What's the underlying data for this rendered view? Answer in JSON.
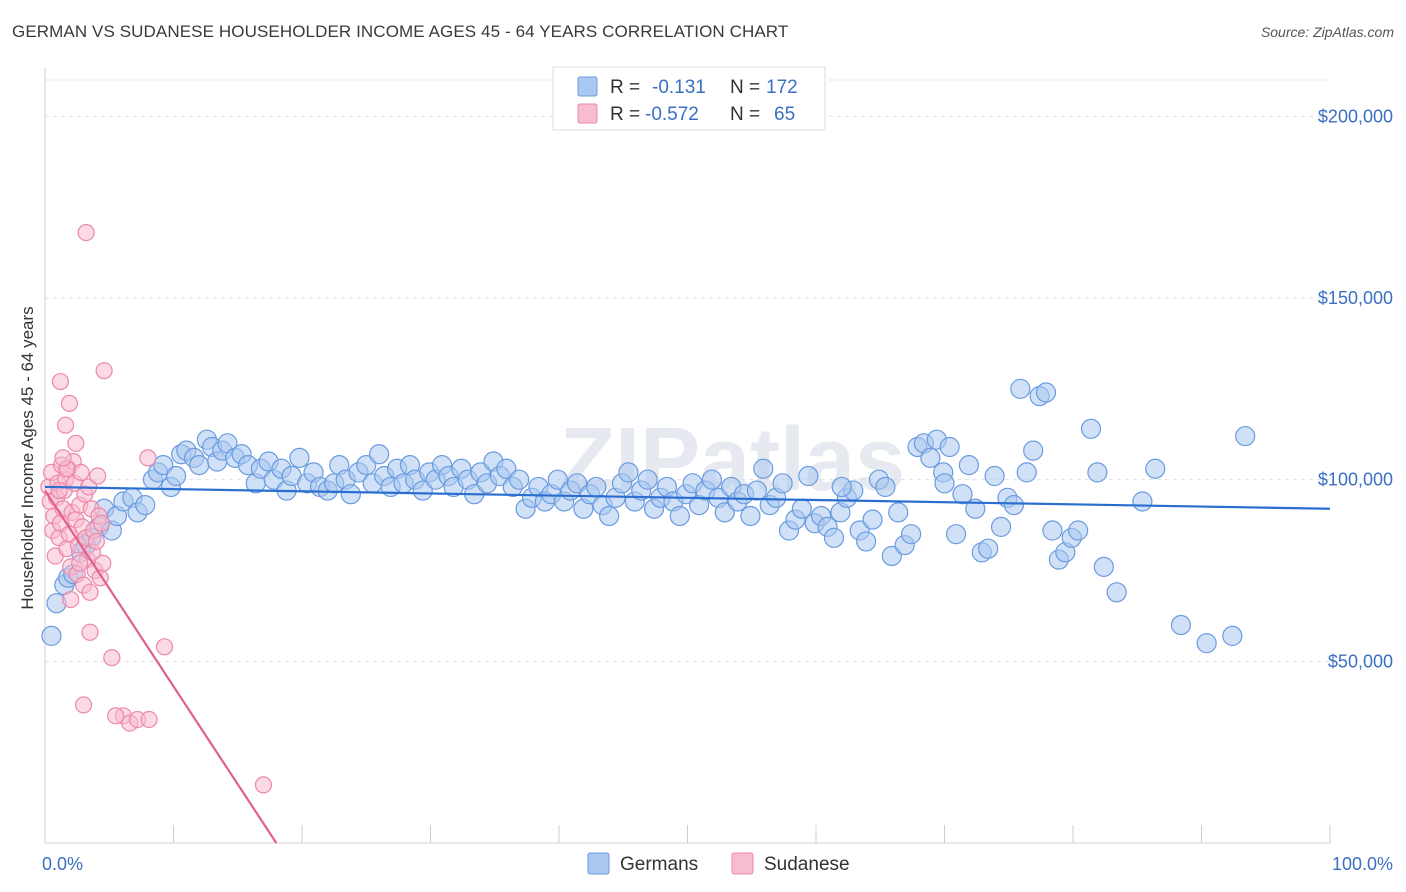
{
  "title": "GERMAN VS SUDANESE HOUSEHOLDER INCOME AGES 45 - 64 YEARS CORRELATION CHART",
  "source": "Source: ZipAtlas.com",
  "watermark": "ZIPatlas",
  "legend_top": [
    {
      "r_label": "R =",
      "r_value": "-0.131",
      "n_label": "N =",
      "n_value": "172",
      "color": "#a9c8f0",
      "stroke": "#6a9be0"
    },
    {
      "r_label": "R =",
      "r_value": "-0.572",
      "n_label": "N =",
      "n_value": "65",
      "color": "#f8bcd0",
      "stroke": "#ec88a8"
    }
  ],
  "chart_data": {
    "type": "scatter",
    "ylabel": "Householder Income Ages 45 - 64 years",
    "xlim": [
      0,
      100
    ],
    "ylim": [
      0,
      210000
    ],
    "x_tick_labels": [
      "0.0%",
      "100.0%"
    ],
    "y_ticks": [
      50000,
      100000,
      150000,
      200000
    ],
    "y_tick_labels": [
      "$50,000",
      "$100,000",
      "$150,000",
      "$200,000"
    ],
    "grid": "horizontal dashed",
    "legend_placement": "top-center and bottom-center",
    "series": [
      {
        "name": "Germans",
        "color": "#a9c8f0",
        "stroke": "#6a9be0",
        "line_color": "#2a6fd0",
        "trend": {
          "x0": 0,
          "y0": 98000,
          "x1": 100,
          "y1": 92000
        },
        "points": [
          [
            0.5,
            57000
          ],
          [
            0.9,
            66000
          ],
          [
            1.5,
            71000
          ],
          [
            1.8,
            73000
          ],
          [
            2.2,
            74000
          ],
          [
            2.8,
            80000
          ],
          [
            3.2,
            82000
          ],
          [
            3.6,
            84000
          ],
          [
            4.2,
            87000
          ],
          [
            4.6,
            92000
          ],
          [
            5.2,
            86000
          ],
          [
            5.6,
            90000
          ],
          [
            6.1,
            94000
          ],
          [
            6.8,
            95000
          ],
          [
            7.2,
            91000
          ],
          [
            7.8,
            93000
          ],
          [
            8.4,
            100000
          ],
          [
            8.8,
            102000
          ],
          [
            9.2,
            104000
          ],
          [
            9.8,
            98000
          ],
          [
            10.2,
            101000
          ],
          [
            10.6,
            107000
          ],
          [
            11.0,
            108000
          ],
          [
            11.6,
            106000
          ],
          [
            12.0,
            104000
          ],
          [
            12.6,
            111000
          ],
          [
            13.0,
            109000
          ],
          [
            13.4,
            105000
          ],
          [
            13.8,
            108000
          ],
          [
            14.2,
            110000
          ],
          [
            14.8,
            106000
          ],
          [
            15.3,
            107000
          ],
          [
            15.8,
            104000
          ],
          [
            16.4,
            99000
          ],
          [
            16.8,
            103000
          ],
          [
            17.4,
            105000
          ],
          [
            17.8,
            100000
          ],
          [
            18.4,
            103000
          ],
          [
            18.8,
            97000
          ],
          [
            19.2,
            101000
          ],
          [
            19.8,
            106000
          ],
          [
            20.4,
            99000
          ],
          [
            20.9,
            102000
          ],
          [
            21.4,
            98000
          ],
          [
            22.0,
            97000
          ],
          [
            22.5,
            99000
          ],
          [
            22.9,
            104000
          ],
          [
            23.4,
            100000
          ],
          [
            23.8,
            96000
          ],
          [
            24.4,
            102000
          ],
          [
            25.0,
            104000
          ],
          [
            25.5,
            99000
          ],
          [
            26.0,
            107000
          ],
          [
            26.4,
            101000
          ],
          [
            26.9,
            98000
          ],
          [
            27.4,
            103000
          ],
          [
            27.9,
            99000
          ],
          [
            28.4,
            104000
          ],
          [
            28.8,
            100000
          ],
          [
            29.4,
            97000
          ],
          [
            29.9,
            102000
          ],
          [
            30.4,
            100000
          ],
          [
            30.9,
            104000
          ],
          [
            31.4,
            101000
          ],
          [
            31.8,
            98000
          ],
          [
            32.4,
            103000
          ],
          [
            32.9,
            100000
          ],
          [
            33.4,
            96000
          ],
          [
            33.9,
            102000
          ],
          [
            34.4,
            99000
          ],
          [
            34.9,
            105000
          ],
          [
            35.4,
            101000
          ],
          [
            35.9,
            103000
          ],
          [
            36.4,
            98000
          ],
          [
            36.9,
            100000
          ],
          [
            37.4,
            92000
          ],
          [
            37.9,
            95000
          ],
          [
            38.4,
            98000
          ],
          [
            38.9,
            94000
          ],
          [
            39.4,
            96000
          ],
          [
            39.9,
            100000
          ],
          [
            40.4,
            94000
          ],
          [
            40.9,
            97000
          ],
          [
            41.4,
            99000
          ],
          [
            41.9,
            92000
          ],
          [
            42.4,
            96000
          ],
          [
            42.9,
            98000
          ],
          [
            43.4,
            93000
          ],
          [
            43.9,
            90000
          ],
          [
            44.4,
            95000
          ],
          [
            44.9,
            99000
          ],
          [
            45.4,
            102000
          ],
          [
            45.9,
            94000
          ],
          [
            46.4,
            97000
          ],
          [
            46.9,
            100000
          ],
          [
            47.4,
            92000
          ],
          [
            47.9,
            95000
          ],
          [
            48.4,
            98000
          ],
          [
            48.9,
            94000
          ],
          [
            49.4,
            90000
          ],
          [
            49.9,
            96000
          ],
          [
            50.4,
            99000
          ],
          [
            50.9,
            93000
          ],
          [
            51.4,
            97000
          ],
          [
            51.9,
            100000
          ],
          [
            52.4,
            95000
          ],
          [
            52.9,
            91000
          ],
          [
            53.4,
            98000
          ],
          [
            53.9,
            94000
          ],
          [
            54.4,
            96000
          ],
          [
            54.9,
            90000
          ],
          [
            55.4,
            97000
          ],
          [
            55.9,
            103000
          ],
          [
            56.4,
            93000
          ],
          [
            56.9,
            95000
          ],
          [
            57.4,
            99000
          ],
          [
            57.9,
            86000
          ],
          [
            58.4,
            89000
          ],
          [
            58.9,
            92000
          ],
          [
            59.4,
            101000
          ],
          [
            59.9,
            88000
          ],
          [
            60.4,
            90000
          ],
          [
            60.9,
            87000
          ],
          [
            61.4,
            84000
          ],
          [
            61.9,
            91000
          ],
          [
            62.4,
            95000
          ],
          [
            62.9,
            97000
          ],
          [
            63.4,
            86000
          ],
          [
            63.9,
            83000
          ],
          [
            64.4,
            89000
          ],
          [
            64.9,
            100000
          ],
          [
            65.4,
            98000
          ],
          [
            65.9,
            79000
          ],
          [
            66.4,
            91000
          ],
          [
            66.9,
            82000
          ],
          [
            67.4,
            85000
          ],
          [
            67.9,
            109000
          ],
          [
            68.4,
            110000
          ],
          [
            68.9,
            106000
          ],
          [
            69.4,
            111000
          ],
          [
            69.9,
            102000
          ],
          [
            70.4,
            109000
          ],
          [
            70.9,
            85000
          ],
          [
            71.4,
            96000
          ],
          [
            71.9,
            104000
          ],
          [
            72.4,
            92000
          ],
          [
            72.9,
            80000
          ],
          [
            73.4,
            81000
          ],
          [
            73.9,
            101000
          ],
          [
            74.4,
            87000
          ],
          [
            74.9,
            95000
          ],
          [
            75.4,
            93000
          ],
          [
            75.9,
            125000
          ],
          [
            76.4,
            102000
          ],
          [
            76.9,
            108000
          ],
          [
            77.4,
            123000
          ],
          [
            77.9,
            124000
          ],
          [
            78.4,
            86000
          ],
          [
            78.9,
            78000
          ],
          [
            79.4,
            80000
          ],
          [
            79.9,
            84000
          ],
          [
            80.4,
            86000
          ],
          [
            81.4,
            114000
          ],
          [
            81.9,
            102000
          ],
          [
            82.4,
            76000
          ],
          [
            83.4,
            69000
          ],
          [
            85.4,
            94000
          ],
          [
            86.4,
            103000
          ],
          [
            88.4,
            60000
          ],
          [
            90.4,
            55000
          ],
          [
            92.4,
            57000
          ],
          [
            93.4,
            112000
          ],
          [
            62.0,
            98000
          ],
          [
            70.0,
            99000
          ]
        ]
      },
      {
        "name": "Sudanese",
        "color": "#f8bcd0",
        "stroke": "#ec88a8",
        "line_color": "#e0608a",
        "trend": {
          "x0": 0,
          "y0": 97000,
          "x1": 18,
          "y1": 0
        },
        "points": [
          [
            0.3,
            98000
          ],
          [
            0.4,
            94000
          ],
          [
            0.5,
            102000
          ],
          [
            0.6,
            86000
          ],
          [
            0.7,
            90000
          ],
          [
            0.8,
            79000
          ],
          [
            0.9,
            95000
          ],
          [
            1.0,
            99000
          ],
          [
            1.1,
            84000
          ],
          [
            1.2,
            88000
          ],
          [
            1.3,
            104000
          ],
          [
            1.4,
            92000
          ],
          [
            1.5,
            97000
          ],
          [
            1.6,
            100000
          ],
          [
            1.7,
            81000
          ],
          [
            1.8,
            103000
          ],
          [
            1.9,
            85000
          ],
          [
            2.0,
            76000
          ],
          [
            2.1,
            91000
          ],
          [
            2.2,
            105000
          ],
          [
            2.3,
            99000
          ],
          [
            2.4,
            89000
          ],
          [
            2.5,
            74000
          ],
          [
            2.6,
            82000
          ],
          [
            2.7,
            93000
          ],
          [
            2.8,
            102000
          ],
          [
            2.9,
            87000
          ],
          [
            3.0,
            71000
          ],
          [
            3.1,
            96000
          ],
          [
            3.2,
            84000
          ],
          [
            3.3,
            78000
          ],
          [
            3.4,
            98000
          ],
          [
            3.5,
            69000
          ],
          [
            3.6,
            92000
          ],
          [
            3.7,
            80000
          ],
          [
            3.8,
            86000
          ],
          [
            3.9,
            75000
          ],
          [
            4.0,
            83000
          ],
          [
            4.1,
            101000
          ],
          [
            4.2,
            90000
          ],
          [
            4.3,
            73000
          ],
          [
            4.4,
            88000
          ],
          [
            4.5,
            77000
          ],
          [
            1.2,
            127000
          ],
          [
            1.6,
            115000
          ],
          [
            1.9,
            121000
          ],
          [
            1.7,
            103000
          ],
          [
            2.4,
            110000
          ],
          [
            3.2,
            168000
          ],
          [
            4.6,
            130000
          ],
          [
            1.1,
            97000
          ],
          [
            2.0,
            67000
          ],
          [
            3.5,
            58000
          ],
          [
            5.2,
            51000
          ],
          [
            6.1,
            35000
          ],
          [
            6.6,
            33000
          ],
          [
            7.2,
            34000
          ],
          [
            8.1,
            34000
          ],
          [
            9.3,
            54000
          ],
          [
            3.0,
            38000
          ],
          [
            5.5,
            35000
          ],
          [
            17.0,
            16000
          ],
          [
            8.0,
            106000
          ],
          [
            1.4,
            106000
          ],
          [
            2.7,
            77000
          ]
        ]
      }
    ]
  },
  "legend_bottom": [
    "Germans",
    "Sudanese"
  ]
}
